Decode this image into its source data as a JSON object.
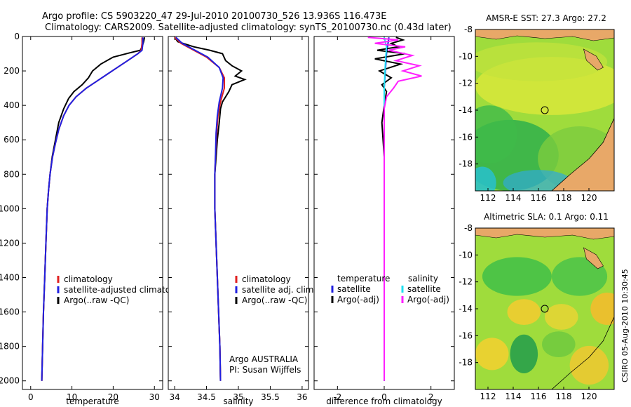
{
  "header": {
    "title_line1": "Argo profile: CS 5903220_47 29-Jul-2010 20100730_526 13.936S 116.473E",
    "title_line2": "Climatology: CARS2009. Satellite-adjusted climatology: synTS_20100730.nc (0.43d later)"
  },
  "side_stamp": "CSIRO 05-Aug-2010 10:30:45",
  "chart_data": [
    {
      "id": "temperature",
      "type": "line",
      "xlabel": "temperature",
      "ylabel": "",
      "xlim": [
        -2,
        32
      ],
      "ylim": [
        0,
        2050
      ],
      "xticks": [
        0,
        10,
        20,
        30
      ],
      "yticks": [
        0,
        200,
        400,
        600,
        800,
        1000,
        1200,
        1400,
        1600,
        1800,
        2000
      ],
      "legend": {
        "entries": [
          "climatology",
          "satellite-adjusted climatology",
          "Argo(..raw -QC)"
        ],
        "placement": "lower-right"
      },
      "series": [
        {
          "name": "Argo(..raw -QC)",
          "color": "#000000",
          "points": [
            [
              27.6,
              5
            ],
            [
              27.4,
              30
            ],
            [
              27.0,
              60
            ],
            [
              26.6,
              80
            ],
            [
              24.0,
              95
            ],
            [
              20.0,
              120
            ],
            [
              17.0,
              160
            ],
            [
              15.0,
              200
            ],
            [
              14.0,
              240
            ],
            [
              12.5,
              280
            ],
            [
              10.5,
              320
            ],
            [
              9.2,
              360
            ],
            [
              8.0,
              420
            ],
            [
              6.8,
              500
            ],
            [
              6.0,
              600
            ],
            [
              5.2,
              700
            ],
            [
              4.7,
              800
            ],
            [
              4.3,
              900
            ],
            [
              4.0,
              1000
            ],
            [
              3.7,
              1200
            ],
            [
              3.4,
              1400
            ],
            [
              3.1,
              1600
            ],
            [
              2.9,
              1800
            ],
            [
              2.7,
              2000
            ]
          ]
        },
        {
          "name": "climatology",
          "color": "#e02020",
          "points": [
            [
              27.0,
              5
            ],
            [
              27.0,
              40
            ],
            [
              26.8,
              80
            ],
            [
              26.0,
              100
            ],
            [
              23.5,
              140
            ],
            [
              21.0,
              180
            ],
            [
              18.5,
              220
            ],
            [
              16.0,
              260
            ],
            [
              13.5,
              300
            ],
            [
              11.0,
              350
            ],
            [
              9.3,
              400
            ],
            [
              8.0,
              460
            ],
            [
              6.8,
              540
            ],
            [
              6.0,
              620
            ],
            [
              5.3,
              700
            ],
            [
              4.7,
              800
            ],
            [
              4.3,
              900
            ],
            [
              4.0,
              1000
            ],
            [
              3.7,
              1200
            ],
            [
              3.4,
              1400
            ],
            [
              3.1,
              1600
            ],
            [
              2.9,
              1800
            ],
            [
              2.7,
              2000
            ]
          ]
        },
        {
          "name": "satellite-adjusted climatology",
          "color": "#2020e0",
          "points": [
            [
              27.2,
              5
            ],
            [
              27.2,
              40
            ],
            [
              27.0,
              80
            ],
            [
              26.0,
              100
            ],
            [
              23.5,
              140
            ],
            [
              21.0,
              180
            ],
            [
              18.5,
              220
            ],
            [
              16.0,
              260
            ],
            [
              13.5,
              300
            ],
            [
              11.0,
              350
            ],
            [
              9.3,
              400
            ],
            [
              8.0,
              460
            ],
            [
              6.8,
              540
            ],
            [
              6.0,
              620
            ],
            [
              5.3,
              700
            ],
            [
              4.7,
              800
            ],
            [
              4.3,
              900
            ],
            [
              4.0,
              1000
            ],
            [
              3.7,
              1200
            ],
            [
              3.4,
              1400
            ],
            [
              3.1,
              1600
            ],
            [
              2.9,
              1800
            ],
            [
              2.7,
              2000
            ]
          ]
        }
      ]
    },
    {
      "id": "salinity",
      "type": "line",
      "xlabel": "salinity",
      "xlim": [
        33.9,
        36.1
      ],
      "ylim": [
        0,
        2050
      ],
      "xticks": [
        34,
        34.5,
        35,
        35.5,
        36
      ],
      "yticks": [
        0,
        200,
        400,
        600,
        800,
        1000,
        1200,
        1400,
        1600,
        1800,
        2000
      ],
      "legend": {
        "entries": [
          "climatology",
          "satellite adj. clim.",
          "Argo(..raw -QC)"
        ],
        "placement": "lower-right"
      },
      "annotation_line1": "Argo AUSTRALIA",
      "annotation_line2": "PI: Susan Wijffels",
      "series": [
        {
          "name": "Argo(..raw -QC)",
          "color": "#000000",
          "points": [
            [
              34.0,
              5
            ],
            [
              34.05,
              30
            ],
            [
              34.3,
              60
            ],
            [
              34.55,
              80
            ],
            [
              34.75,
              100
            ],
            [
              34.8,
              140
            ],
            [
              34.9,
              170
            ],
            [
              35.05,
              200
            ],
            [
              34.95,
              230
            ],
            [
              35.1,
              250
            ],
            [
              34.9,
              280
            ],
            [
              34.85,
              320
            ],
            [
              34.75,
              380
            ],
            [
              34.72,
              420
            ],
            [
              34.7,
              500
            ],
            [
              34.67,
              600
            ],
            [
              34.65,
              700
            ],
            [
              34.63,
              800
            ],
            [
              34.63,
              1000
            ],
            [
              34.65,
              1200
            ],
            [
              34.67,
              1400
            ],
            [
              34.69,
              1600
            ],
            [
              34.71,
              1800
            ],
            [
              34.72,
              2000
            ]
          ]
        },
        {
          "name": "climatology",
          "color": "#e02020",
          "points": [
            [
              34.0,
              5
            ],
            [
              34.1,
              40
            ],
            [
              34.3,
              80
            ],
            [
              34.5,
              120
            ],
            [
              34.7,
              180
            ],
            [
              34.78,
              240
            ],
            [
              34.78,
              300
            ],
            [
              34.72,
              380
            ],
            [
              34.68,
              460
            ],
            [
              34.66,
              560
            ],
            [
              34.64,
              700
            ],
            [
              34.63,
              800
            ],
            [
              34.63,
              1000
            ],
            [
              34.65,
              1200
            ],
            [
              34.67,
              1400
            ],
            [
              34.69,
              1600
            ],
            [
              34.71,
              1800
            ],
            [
              34.72,
              2000
            ]
          ]
        },
        {
          "name": "satellite adj. clim.",
          "color": "#2020e0",
          "points": [
            [
              34.02,
              5
            ],
            [
              34.12,
              40
            ],
            [
              34.32,
              80
            ],
            [
              34.52,
              120
            ],
            [
              34.7,
              180
            ],
            [
              34.76,
              240
            ],
            [
              34.75,
              300
            ],
            [
              34.7,
              380
            ],
            [
              34.67,
              460
            ],
            [
              34.65,
              560
            ],
            [
              34.64,
              700
            ],
            [
              34.63,
              800
            ],
            [
              34.63,
              1000
            ],
            [
              34.65,
              1200
            ],
            [
              34.67,
              1400
            ],
            [
              34.69,
              1600
            ],
            [
              34.71,
              1800
            ],
            [
              34.72,
              2000
            ]
          ]
        }
      ]
    },
    {
      "id": "difference",
      "type": "line",
      "xlabel": "difference from climatology",
      "xlim": [
        -3,
        3
      ],
      "ylim": [
        0,
        2050
      ],
      "xticks": [
        -2,
        0,
        2
      ],
      "yticks": [
        0,
        200,
        400,
        600,
        800,
        1000,
        1200,
        1400,
        1600,
        1800,
        2000
      ],
      "legend": {
        "temperature_header": "temperature",
        "salinity_header": "salinity",
        "entries": [
          "satellite",
          "Argo(-adj)",
          "satellite",
          "Argo(-adj)"
        ],
        "placement": "lower"
      },
      "series": [
        {
          "name": "temperature satellite",
          "color": "#2020e0",
          "points": [
            [
              0.2,
              5
            ],
            [
              0.1,
              100
            ],
            [
              0.0,
              300
            ],
            [
              0.0,
              600
            ],
            [
              0.0,
              1000
            ],
            [
              0.0,
              2000
            ]
          ]
        },
        {
          "name": "temperature Argo(-adj)",
          "color": "#000000",
          "points": [
            [
              0.5,
              5
            ],
            [
              0.8,
              20
            ],
            [
              0.3,
              40
            ],
            [
              0.6,
              60
            ],
            [
              -0.3,
              80
            ],
            [
              0.9,
              100
            ],
            [
              -0.4,
              130
            ],
            [
              0.7,
              160
            ],
            [
              -0.2,
              200
            ],
            [
              0.3,
              240
            ],
            [
              -0.1,
              280
            ],
            [
              0.1,
              320
            ],
            [
              0.0,
              400
            ],
            [
              -0.1,
              500
            ],
            [
              0.0,
              700
            ],
            [
              0.0,
              1000
            ],
            [
              0.0,
              1400
            ],
            [
              0.0,
              2000
            ]
          ]
        },
        {
          "name": "salinity satellite",
          "color": "#20e0f0",
          "points": [
            [
              0.0,
              5
            ],
            [
              0.1,
              60
            ],
            [
              0.05,
              150
            ],
            [
              0.0,
              300
            ],
            [
              0.0,
              600
            ],
            [
              0.0,
              1000
            ],
            [
              0.0,
              2000
            ]
          ]
        },
        {
          "name": "salinity Argo(-adj)",
          "color": "#ff20ff",
          "points": [
            [
              -0.7,
              5
            ],
            [
              0.6,
              20
            ],
            [
              -0.4,
              40
            ],
            [
              0.9,
              60
            ],
            [
              0.2,
              80
            ],
            [
              1.2,
              110
            ],
            [
              0.5,
              140
            ],
            [
              1.5,
              170
            ],
            [
              0.8,
              200
            ],
            [
              1.6,
              230
            ],
            [
              0.6,
              260
            ],
            [
              0.4,
              300
            ],
            [
              0.1,
              350
            ],
            [
              0.0,
              420
            ],
            [
              0.0,
              600
            ],
            [
              0.0,
              1000
            ],
            [
              0.0,
              2000
            ]
          ]
        }
      ]
    },
    {
      "id": "sst_map",
      "type": "heatmap",
      "title": "AMSR-E SST: 27.3 Argo: 27.2",
      "xlim": [
        111,
        122
      ],
      "ylim": [
        -20,
        -8
      ],
      "xticks": [
        112,
        114,
        116,
        118,
        120
      ],
      "yticks": [
        -8,
        -10,
        -12,
        -14,
        -16,
        -18
      ],
      "marker": {
        "lon": 116.5,
        "lat": -14
      }
    },
    {
      "id": "sla_map",
      "type": "heatmap",
      "title": "Altimetric SLA: 0.1 Argo: 0.11",
      "xlim": [
        111,
        122
      ],
      "ylim": [
        -20,
        -8
      ],
      "xticks": [
        112,
        114,
        116,
        118,
        120
      ],
      "yticks": [
        -8,
        -10,
        -12,
        -14,
        -16,
        -18
      ],
      "marker": {
        "lon": 116.5,
        "lat": -14
      }
    }
  ]
}
